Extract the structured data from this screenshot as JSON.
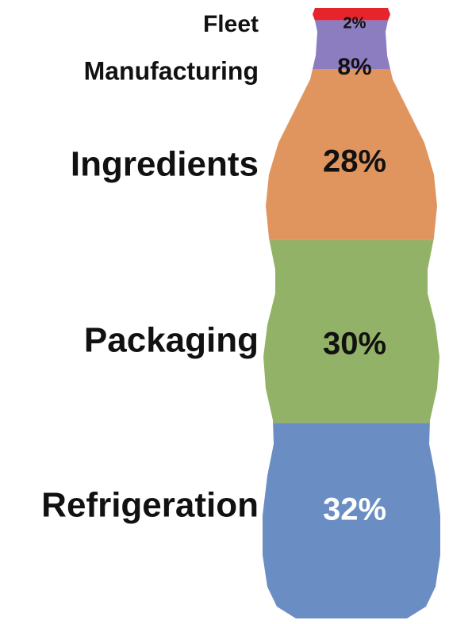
{
  "chart_data": {
    "type": "bottle",
    "categories": [
      "Fleet",
      "Manufacturing",
      "Ingredients",
      "Packaging",
      "Refrigeration"
    ],
    "values": [
      2,
      8,
      28,
      30,
      32
    ],
    "value_labels": [
      "2%",
      "8%",
      "28%",
      "30%",
      "32%"
    ],
    "colors": [
      "#e5242c",
      "#8c7cc0",
      "#e0955f",
      "#92b267",
      "#6a8dc3"
    ]
  }
}
